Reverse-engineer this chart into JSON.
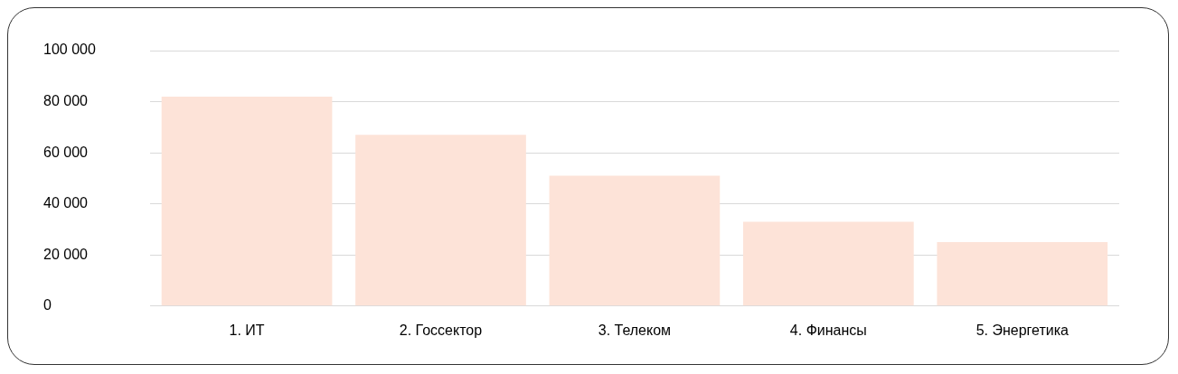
{
  "chart_data": {
    "type": "bar",
    "categories": [
      "1. ИТ",
      "2. Госсектор",
      "3. Телеком",
      "4. Финансы",
      "5. Энергетика"
    ],
    "values": [
      82000,
      67000,
      51000,
      33000,
      25000
    ],
    "color": "#fde3d8",
    "ylim": [
      0,
      100000
    ],
    "yticks": [
      {
        "value": 0,
        "label": "0"
      },
      {
        "value": 20000,
        "label": "20 000"
      },
      {
        "value": 40000,
        "label": "40 000"
      },
      {
        "value": 60000,
        "label": "60 000"
      },
      {
        "value": 80000,
        "label": "80 000"
      },
      {
        "value": 100000,
        "label": "100 000"
      }
    ],
    "grid": "y",
    "legend": false
  }
}
